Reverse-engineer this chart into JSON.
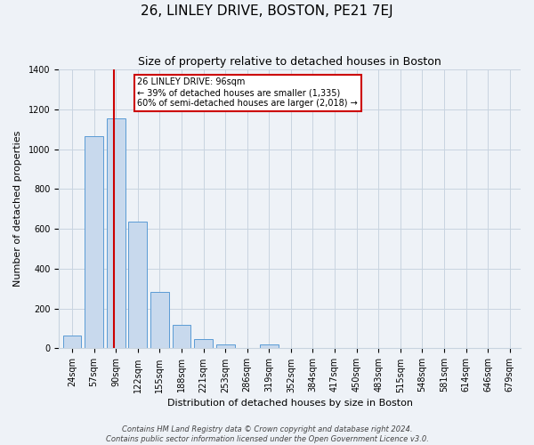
{
  "title": "26, LINLEY DRIVE, BOSTON, PE21 7EJ",
  "subtitle": "Size of property relative to detached houses in Boston",
  "xlabel": "Distribution of detached houses by size in Boston",
  "ylabel": "Number of detached properties",
  "footer_line1": "Contains HM Land Registry data © Crown copyright and database right 2024.",
  "footer_line2": "Contains public sector information licensed under the Open Government Licence v3.0.",
  "bar_centers": [
    1,
    2,
    3,
    4,
    5,
    6,
    7,
    8,
    9,
    10,
    11,
    12,
    13,
    14,
    15,
    16,
    17,
    18,
    19,
    20
  ],
  "bar_heights": [
    65,
    1065,
    1155,
    635,
    285,
    120,
    48,
    20,
    0,
    22,
    0,
    0,
    0,
    0,
    0,
    0,
    0,
    0,
    0,
    0
  ],
  "bar_color": "#c8d9ed",
  "bar_edge_color": "#5b9bd5",
  "xtick_labels": [
    "24sqm",
    "57sqm",
    "90sqm",
    "122sqm",
    "155sqm",
    "188sqm",
    "221sqm",
    "253sqm",
    "286sqm",
    "319sqm",
    "352sqm",
    "384sqm",
    "417sqm",
    "450sqm",
    "483sqm",
    "515sqm",
    "548sqm",
    "581sqm",
    "614sqm",
    "646sqm",
    "679sqm"
  ],
  "ylim": [
    0,
    1400
  ],
  "yticks": [
    0,
    200,
    400,
    600,
    800,
    1000,
    1200,
    1400
  ],
  "vline_x": 2.9,
  "vline_color": "#cc0000",
  "annotation_title": "26 LINLEY DRIVE: 96sqm",
  "annotation_line1": "← 39% of detached houses are smaller (1,335)",
  "annotation_line2": "60% of semi-detached houses are larger (2,018) →",
  "grid_color": "#c8d4e0",
  "background_color": "#eef2f7",
  "plot_background": "#eef2f7",
  "title_fontsize": 11,
  "subtitle_fontsize": 9,
  "xlabel_fontsize": 8,
  "ylabel_fontsize": 8,
  "tick_fontsize": 7,
  "footer_fontsize": 6
}
